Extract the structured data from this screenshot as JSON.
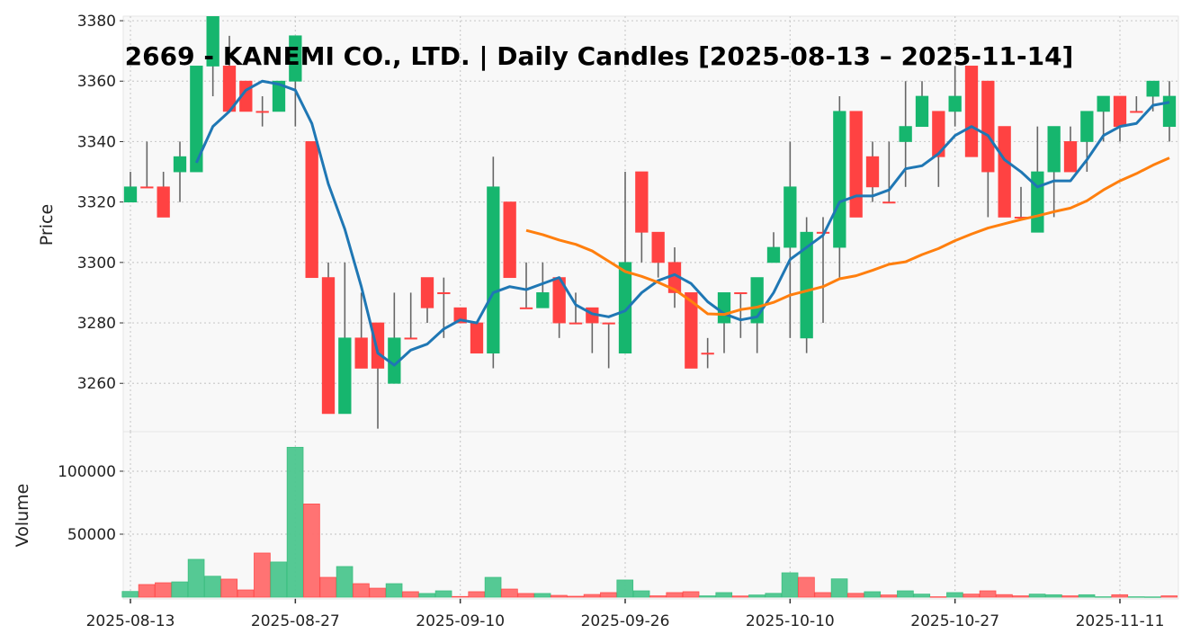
{
  "chart_data": {
    "type": "candlestick",
    "title": "2669 - KANEMI CO., LTD. | Daily Candles [2025-08-13 – 2025-11-14]",
    "price_panel": {
      "ylabel": "Price",
      "ylim": [
        3244,
        3381.5
      ],
      "yticks": [
        3260,
        3280,
        3300,
        3320,
        3340,
        3360,
        3380
      ],
      "grid": true
    },
    "volume_panel": {
      "ylabel": "Volume",
      "ylim": [
        0,
        131400
      ],
      "yticks": [
        50000,
        100000
      ],
      "grid": true
    },
    "xticks": [
      {
        "index": 0,
        "label": "2025-08-13"
      },
      {
        "index": 10,
        "label": "2025-08-27"
      },
      {
        "index": 20,
        "label": "2025-09-10"
      },
      {
        "index": 30,
        "label": "2025-09-26"
      },
      {
        "index": 40,
        "label": "2025-10-10"
      },
      {
        "index": 50,
        "label": "2025-10-27"
      },
      {
        "index": 60,
        "label": "2025-11-11"
      }
    ],
    "moving_averages": [
      {
        "name": "MA5",
        "window": 5,
        "color": "#1f77b4"
      },
      {
        "name": "MA25",
        "window": 25,
        "color": "#ff7f0e"
      }
    ],
    "colors": {
      "up": "#16b66e",
      "down": "#ff4242",
      "vol_up": "#4cc68e",
      "vol_down": "#ff6b6b",
      "wick": "#666666"
    },
    "dates": [
      "2025-08-13",
      "2025-08-14",
      "2025-08-15",
      "2025-08-18",
      "2025-08-19",
      "2025-08-20",
      "2025-08-21",
      "2025-08-22",
      "2025-08-25",
      "2025-08-26",
      "2025-08-27",
      "2025-08-28",
      "2025-08-29",
      "2025-09-01",
      "2025-09-02",
      "2025-09-03",
      "2025-09-04",
      "2025-09-05",
      "2025-09-08",
      "2025-09-09",
      "2025-09-10",
      "2025-09-11",
      "2025-09-12",
      "2025-09-16",
      "2025-09-17",
      "2025-09-18",
      "2025-09-19",
      "2025-09-22",
      "2025-09-24",
      "2025-09-25",
      "2025-09-26",
      "2025-09-29",
      "2025-09-30",
      "2025-10-01",
      "2025-10-02",
      "2025-10-03",
      "2025-10-06",
      "2025-10-07",
      "2025-10-08",
      "2025-10-09",
      "2025-10-10",
      "2025-10-14",
      "2025-10-15",
      "2025-10-16",
      "2025-10-17",
      "2025-10-20",
      "2025-10-21",
      "2025-10-22",
      "2025-10-23",
      "2025-10-24",
      "2025-10-27",
      "2025-10-28",
      "2025-10-29",
      "2025-10-30",
      "2025-10-31",
      "2025-11-04",
      "2025-11-05",
      "2025-11-06",
      "2025-11-07",
      "2025-11-10",
      "2025-11-11",
      "2025-11-12",
      "2025-11-13",
      "2025-11-14"
    ],
    "open": [
      3320,
      3325,
      3325,
      3330,
      3330,
      3365,
      3365,
      3360,
      3350,
      3350,
      3360,
      3340,
      3295,
      3250,
      3275,
      3280,
      3260,
      3275,
      3295,
      3290,
      3285,
      3280,
      3270,
      3320,
      3285,
      3285,
      3295,
      3280,
      3285,
      3280,
      3270,
      3330,
      3310,
      3300,
      3290,
      3270,
      3280,
      3290,
      3280,
      3300,
      3305,
      3275,
      3310,
      3305,
      3350,
      3335,
      3320,
      3340,
      3345,
      3350,
      3350,
      3365,
      3360,
      3345,
      3315,
      3310,
      3330,
      3340,
      3340,
      3350,
      3355,
      3350,
      3355,
      3345
    ],
    "high": [
      3330,
      3340,
      3330,
      3340,
      3365,
      3385,
      3375,
      3360,
      3355,
      3360,
      3375,
      3340,
      3300,
      3300,
      3290,
      3280,
      3290,
      3290,
      3295,
      3295,
      3285,
      3280,
      3335,
      3320,
      3300,
      3300,
      3295,
      3290,
      3285,
      3280,
      3330,
      3330,
      3310,
      3305,
      3290,
      3275,
      3290,
      3290,
      3295,
      3310,
      3340,
      3315,
      3315,
      3355,
      3350,
      3340,
      3340,
      3360,
      3360,
      3350,
      3365,
      3365,
      3360,
      3345,
      3325,
      3345,
      3345,
      3345,
      3350,
      3355,
      3355,
      3355,
      3360,
      3360
    ],
    "low": [
      3320,
      3325,
      3315,
      3320,
      3330,
      3355,
      3350,
      3350,
      3345,
      3350,
      3345,
      3295,
      3250,
      3250,
      3265,
      3245,
      3260,
      3275,
      3280,
      3275,
      3280,
      3270,
      3265,
      3295,
      3285,
      3285,
      3275,
      3280,
      3270,
      3265,
      3270,
      3300,
      3295,
      3285,
      3265,
      3265,
      3270,
      3275,
      3270,
      3300,
      3275,
      3270,
      3280,
      3295,
      3315,
      3320,
      3320,
      3325,
      3345,
      3325,
      3345,
      3335,
      3315,
      3315,
      3315,
      3310,
      3315,
      3330,
      3330,
      3340,
      3340,
      3350,
      3350,
      3340
    ],
    "close": [
      3325,
      3325,
      3315,
      3335,
      3365,
      3385,
      3350,
      3350,
      3350,
      3360,
      3375,
      3295,
      3250,
      3275,
      3265,
      3265,
      3275,
      3275,
      3285,
      3290,
      3280,
      3270,
      3325,
      3295,
      3285,
      3290,
      3280,
      3280,
      3280,
      3280,
      3300,
      3310,
      3300,
      3290,
      3265,
      3270,
      3290,
      3290,
      3295,
      3305,
      3325,
      3310,
      3310,
      3350,
      3315,
      3325,
      3320,
      3345,
      3355,
      3335,
      3355,
      3335,
      3330,
      3315,
      3315,
      3330,
      3345,
      3330,
      3350,
      3355,
      3345,
      3350,
      3360,
      3355
    ],
    "volume": [
      4500,
      10000,
      11400,
      12100,
      30000,
      16600,
      14300,
      5700,
      35000,
      27900,
      119000,
      74000,
      15700,
      24300,
      10700,
      7100,
      10700,
      4300,
      2900,
      5000,
      500,
      4300,
      15700,
      6400,
      2900,
      2900,
      1400,
      700,
      2100,
      3600,
      13600,
      5000,
      1000,
      3600,
      4300,
      1000,
      3600,
      900,
      1700,
      3000,
      19300,
      15700,
      3600,
      14500,
      3000,
      4300,
      1700,
      5000,
      2400,
      300,
      3600,
      2400,
      5000,
      2000,
      1000,
      2400,
      1900,
      1000,
      1900,
      300,
      1900,
      300,
      200,
      1000
    ]
  }
}
